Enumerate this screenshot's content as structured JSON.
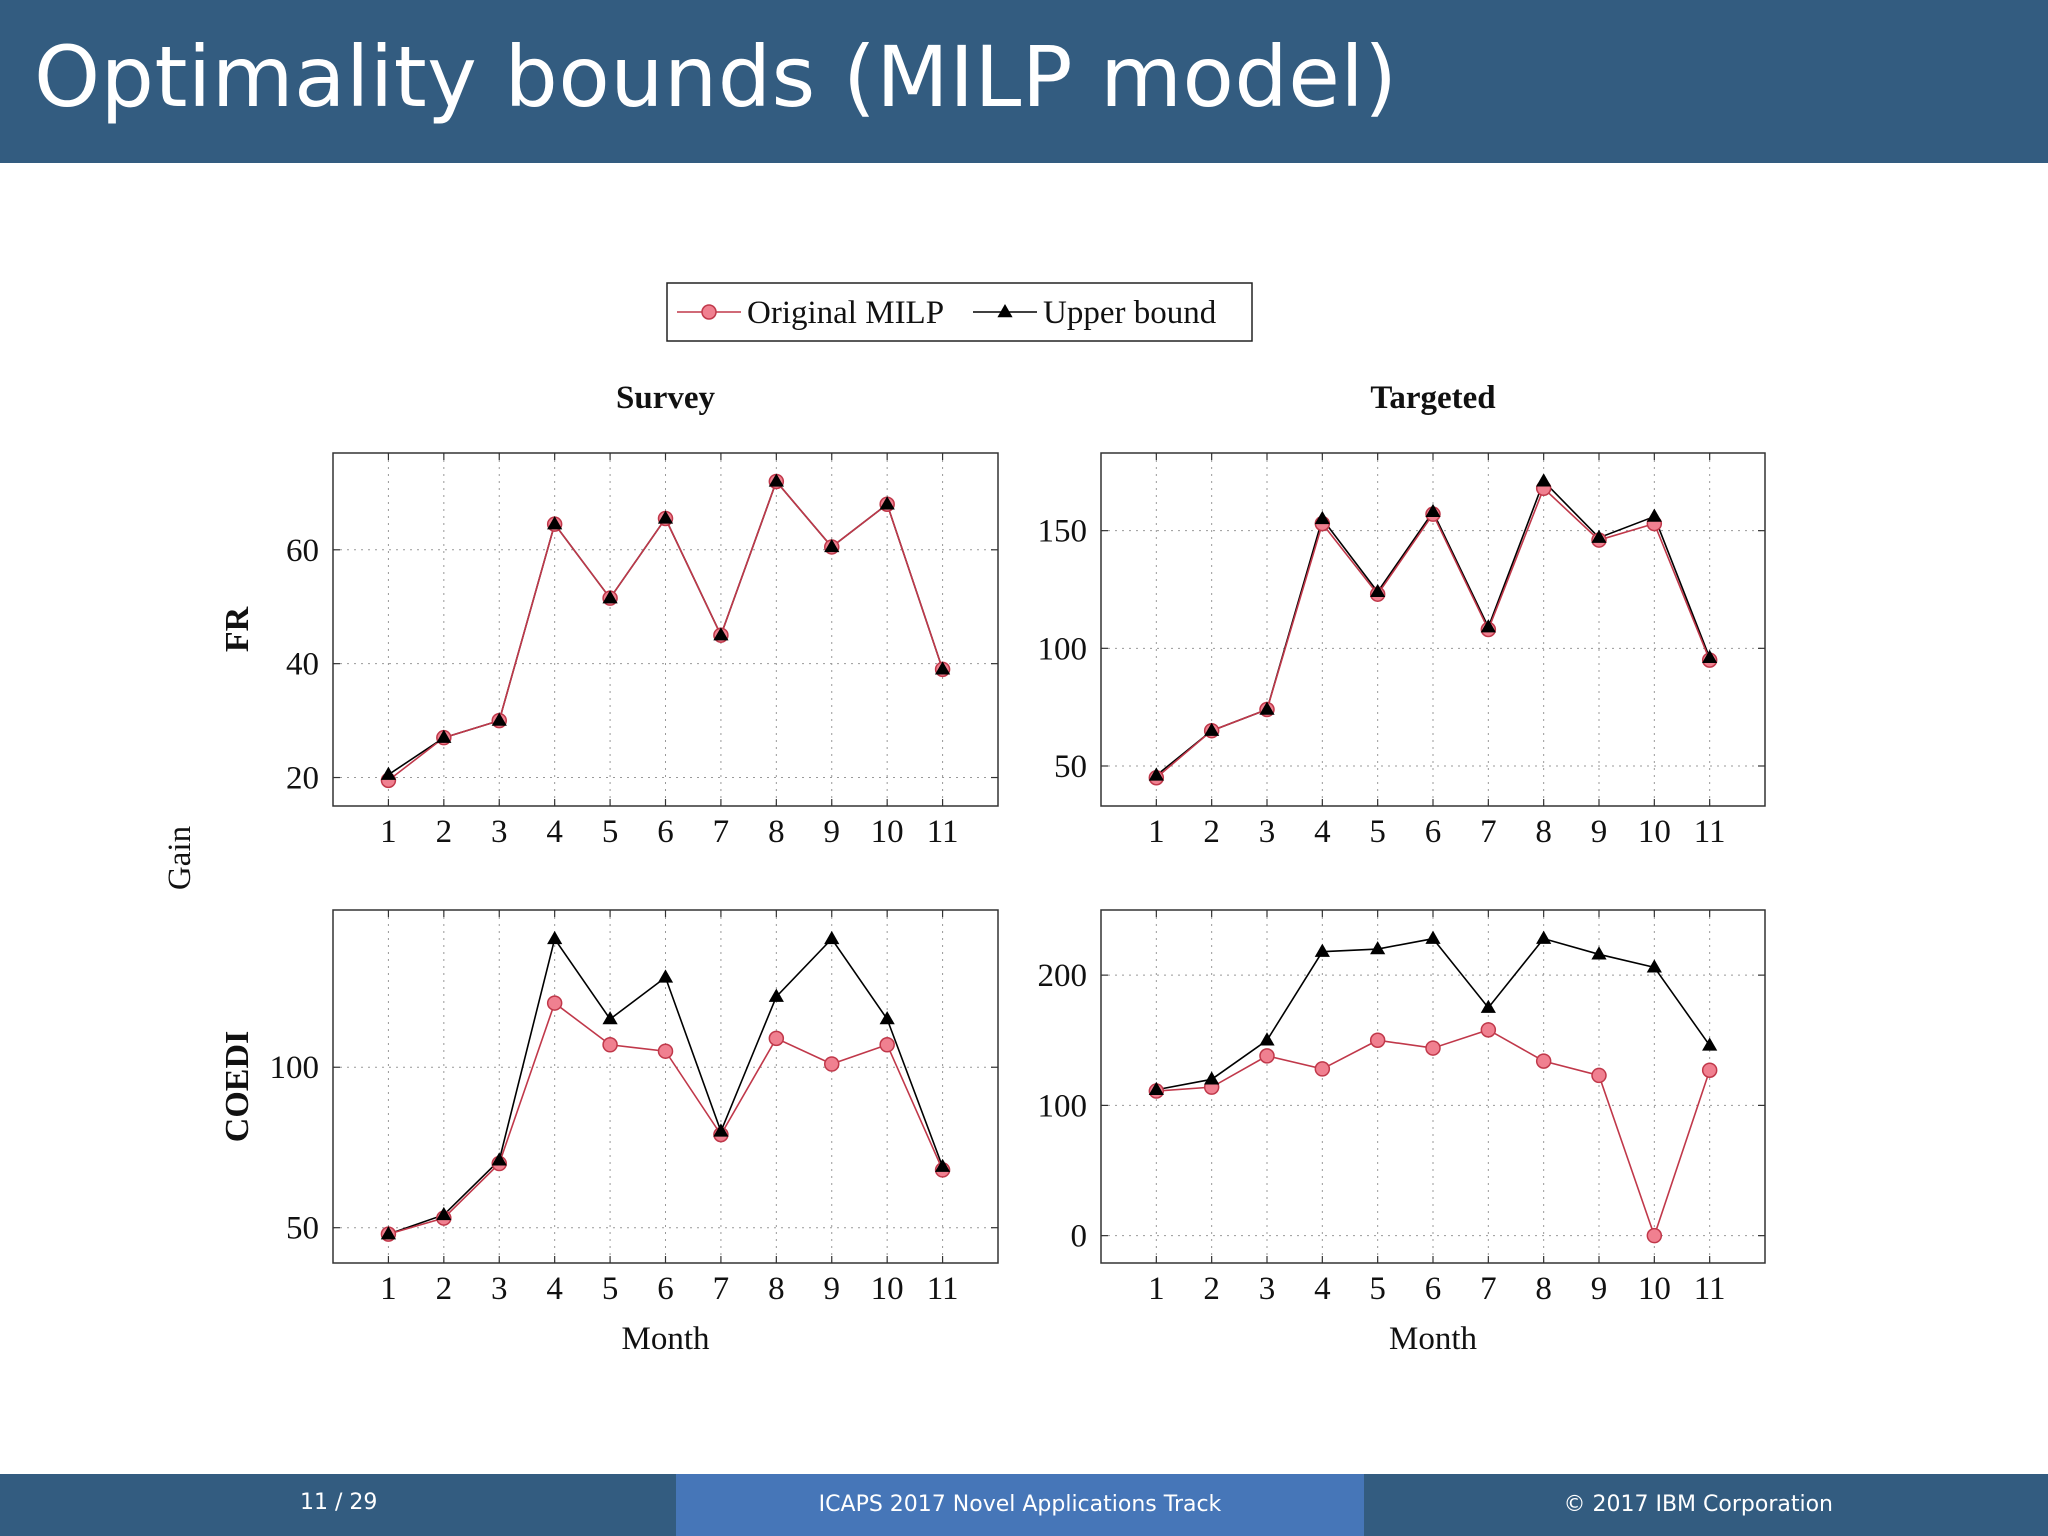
{
  "slide": {
    "title": "Optimality bounds (MILP model)"
  },
  "footer": {
    "page": "11 / 29",
    "center": "ICAPS 2017 Novel Applications Track",
    "copyright": "© 2017 IBM Corporation"
  },
  "figure": {
    "legend": [
      "Original MILP",
      "Upper bound"
    ],
    "shared_ylabel": "Gain",
    "column_titles": [
      "Survey",
      "Targeted"
    ],
    "row_labels": [
      "FR",
      "COEDI"
    ],
    "xlabel": "Month"
  },
  "colors": {
    "original": "#c0384a",
    "original_fill": "#f08090",
    "upper": "#000000",
    "header": "#335c80",
    "footer_mid": "#4676b8"
  },
  "chart_data": [
    {
      "type": "line",
      "panel": "FR-Survey",
      "title": "Survey",
      "ylabel": "FR",
      "xlabel": "",
      "x": [
        1,
        2,
        3,
        4,
        5,
        6,
        7,
        8,
        9,
        10,
        11
      ],
      "xlim": [
        0,
        12
      ],
      "ylim": [
        15,
        77
      ],
      "yticks": [
        20,
        40,
        60
      ],
      "grid": true,
      "series": [
        {
          "name": "Original MILP",
          "marker": "circle",
          "values": [
            19.5,
            27,
            30,
            64.5,
            51.5,
            65.5,
            45,
            72,
            60.5,
            68,
            39
          ]
        },
        {
          "name": "Upper bound",
          "marker": "triangle",
          "values": [
            20.5,
            27,
            30,
            64.5,
            51.5,
            65.5,
            45,
            72,
            60.5,
            68,
            39
          ]
        }
      ]
    },
    {
      "type": "line",
      "panel": "FR-Targeted",
      "title": "Targeted",
      "ylabel": "",
      "xlabel": "",
      "x": [
        1,
        2,
        3,
        4,
        5,
        6,
        7,
        8,
        9,
        10,
        11
      ],
      "xlim": [
        0,
        12
      ],
      "ylim": [
        33,
        183
      ],
      "yticks": [
        50,
        100,
        150
      ],
      "grid": true,
      "series": [
        {
          "name": "Original MILP",
          "marker": "circle",
          "values": [
            45,
            65,
            74,
            153,
            123,
            157,
            108,
            168,
            146,
            153,
            95
          ]
        },
        {
          "name": "Upper bound",
          "marker": "triangle",
          "values": [
            46,
            65,
            74,
            155,
            124,
            158,
            109,
            171,
            147,
            156,
            96
          ]
        }
      ]
    },
    {
      "type": "line",
      "panel": "COEDI-Survey",
      "title": "",
      "ylabel": "COEDI",
      "xlabel": "Month",
      "x": [
        1,
        2,
        3,
        4,
        5,
        6,
        7,
        8,
        9,
        10,
        11
      ],
      "xlim": [
        0,
        12
      ],
      "ylim": [
        39,
        149
      ],
      "yticks": [
        50,
        100
      ],
      "grid": true,
      "series": [
        {
          "name": "Original MILP",
          "marker": "circle",
          "values": [
            48,
            53,
            70,
            120,
            107,
            105,
            79,
            109,
            101,
            107,
            68
          ]
        },
        {
          "name": "Upper bound",
          "marker": "triangle",
          "values": [
            48,
            54,
            71,
            140,
            115,
            128,
            80,
            122,
            140,
            115,
            69
          ]
        }
      ]
    },
    {
      "type": "line",
      "panel": "COEDI-Targeted",
      "title": "",
      "ylabel": "",
      "xlabel": "Month",
      "x": [
        1,
        2,
        3,
        4,
        5,
        6,
        7,
        8,
        9,
        10,
        11
      ],
      "xlim": [
        0,
        12
      ],
      "ylim": [
        -21,
        250
      ],
      "yticks": [
        0,
        100,
        200
      ],
      "grid": true,
      "series": [
        {
          "name": "Original MILP",
          "marker": "circle",
          "values": [
            111,
            114,
            138,
            128,
            150,
            144,
            158,
            134,
            123,
            0,
            127
          ]
        },
        {
          "name": "Upper bound",
          "marker": "triangle",
          "values": [
            112,
            120,
            150,
            218,
            220,
            228,
            175,
            228,
            216,
            206,
            146
          ]
        }
      ]
    }
  ]
}
